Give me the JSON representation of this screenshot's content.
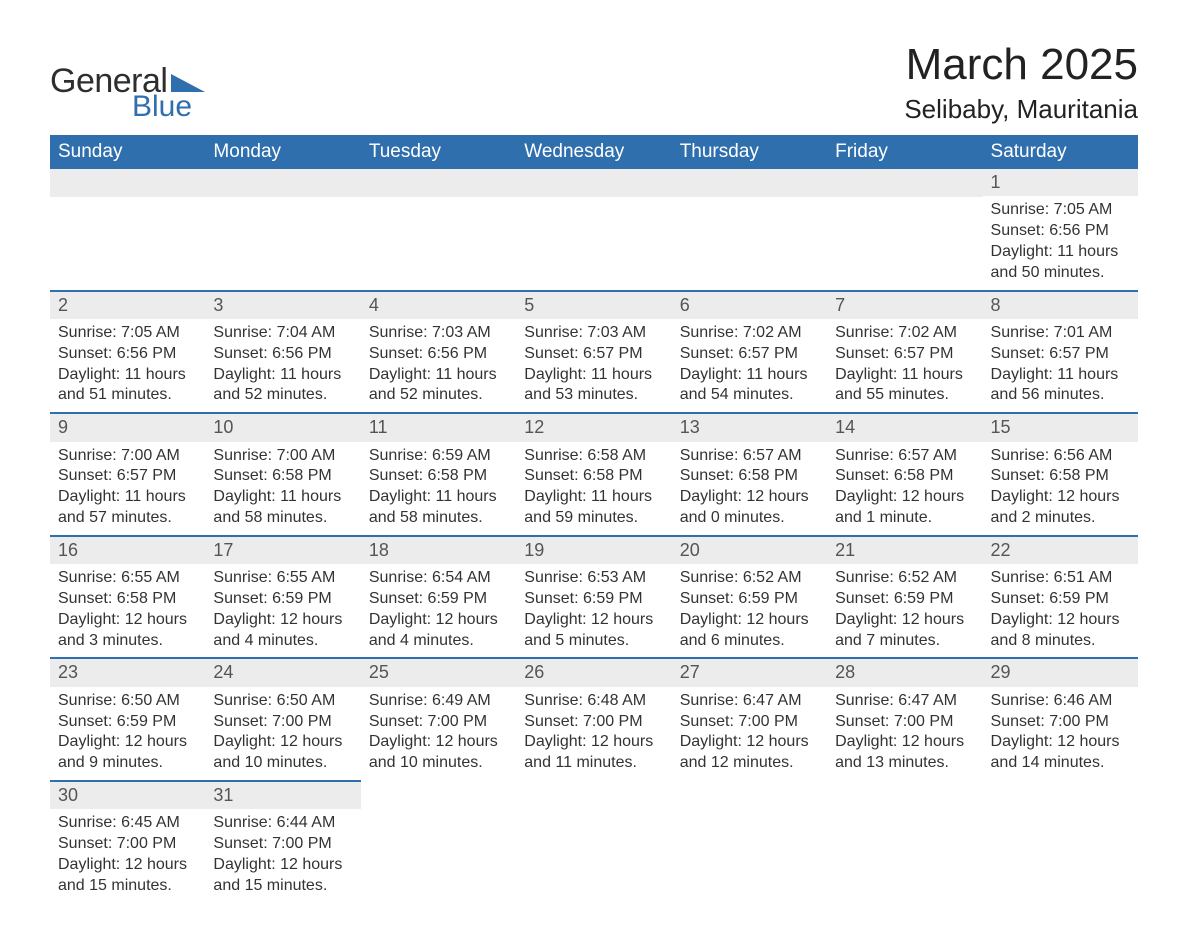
{
  "brand": {
    "general": "General",
    "blue": "Blue",
    "triangle_color": "#2f6fae"
  },
  "title": {
    "month": "March 2025",
    "location": "Selibaby, Mauritania"
  },
  "colors": {
    "header_bg": "#2f6fae",
    "header_fg": "#ffffff",
    "daynum_bg": "#ececec",
    "row_border": "#2f6fae",
    "text": "#333333"
  },
  "columns": [
    "Sunday",
    "Monday",
    "Tuesday",
    "Wednesday",
    "Thursday",
    "Friday",
    "Saturday"
  ],
  "weeks": [
    [
      {
        "blank": true
      },
      {
        "blank": true
      },
      {
        "blank": true
      },
      {
        "blank": true
      },
      {
        "blank": true
      },
      {
        "blank": true
      },
      {
        "day": "1",
        "sunrise": "Sunrise: 7:05 AM",
        "sunset": "Sunset: 6:56 PM",
        "daylight": "Daylight: 11 hours and 50 minutes."
      }
    ],
    [
      {
        "day": "2",
        "sunrise": "Sunrise: 7:05 AM",
        "sunset": "Sunset: 6:56 PM",
        "daylight": "Daylight: 11 hours and 51 minutes."
      },
      {
        "day": "3",
        "sunrise": "Sunrise: 7:04 AM",
        "sunset": "Sunset: 6:56 PM",
        "daylight": "Daylight: 11 hours and 52 minutes."
      },
      {
        "day": "4",
        "sunrise": "Sunrise: 7:03 AM",
        "sunset": "Sunset: 6:56 PM",
        "daylight": "Daylight: 11 hours and 52 minutes."
      },
      {
        "day": "5",
        "sunrise": "Sunrise: 7:03 AM",
        "sunset": "Sunset: 6:57 PM",
        "daylight": "Daylight: 11 hours and 53 minutes."
      },
      {
        "day": "6",
        "sunrise": "Sunrise: 7:02 AM",
        "sunset": "Sunset: 6:57 PM",
        "daylight": "Daylight: 11 hours and 54 minutes."
      },
      {
        "day": "7",
        "sunrise": "Sunrise: 7:02 AM",
        "sunset": "Sunset: 6:57 PM",
        "daylight": "Daylight: 11 hours and 55 minutes."
      },
      {
        "day": "8",
        "sunrise": "Sunrise: 7:01 AM",
        "sunset": "Sunset: 6:57 PM",
        "daylight": "Daylight: 11 hours and 56 minutes."
      }
    ],
    [
      {
        "day": "9",
        "sunrise": "Sunrise: 7:00 AM",
        "sunset": "Sunset: 6:57 PM",
        "daylight": "Daylight: 11 hours and 57 minutes."
      },
      {
        "day": "10",
        "sunrise": "Sunrise: 7:00 AM",
        "sunset": "Sunset: 6:58 PM",
        "daylight": "Daylight: 11 hours and 58 minutes."
      },
      {
        "day": "11",
        "sunrise": "Sunrise: 6:59 AM",
        "sunset": "Sunset: 6:58 PM",
        "daylight": "Daylight: 11 hours and 58 minutes."
      },
      {
        "day": "12",
        "sunrise": "Sunrise: 6:58 AM",
        "sunset": "Sunset: 6:58 PM",
        "daylight": "Daylight: 11 hours and 59 minutes."
      },
      {
        "day": "13",
        "sunrise": "Sunrise: 6:57 AM",
        "sunset": "Sunset: 6:58 PM",
        "daylight": "Daylight: 12 hours and 0 minutes."
      },
      {
        "day": "14",
        "sunrise": "Sunrise: 6:57 AM",
        "sunset": "Sunset: 6:58 PM",
        "daylight": "Daylight: 12 hours and 1 minute."
      },
      {
        "day": "15",
        "sunrise": "Sunrise: 6:56 AM",
        "sunset": "Sunset: 6:58 PM",
        "daylight": "Daylight: 12 hours and 2 minutes."
      }
    ],
    [
      {
        "day": "16",
        "sunrise": "Sunrise: 6:55 AM",
        "sunset": "Sunset: 6:58 PM",
        "daylight": "Daylight: 12 hours and 3 minutes."
      },
      {
        "day": "17",
        "sunrise": "Sunrise: 6:55 AM",
        "sunset": "Sunset: 6:59 PM",
        "daylight": "Daylight: 12 hours and 4 minutes."
      },
      {
        "day": "18",
        "sunrise": "Sunrise: 6:54 AM",
        "sunset": "Sunset: 6:59 PM",
        "daylight": "Daylight: 12 hours and 4 minutes."
      },
      {
        "day": "19",
        "sunrise": "Sunrise: 6:53 AM",
        "sunset": "Sunset: 6:59 PM",
        "daylight": "Daylight: 12 hours and 5 minutes."
      },
      {
        "day": "20",
        "sunrise": "Sunrise: 6:52 AM",
        "sunset": "Sunset: 6:59 PM",
        "daylight": "Daylight: 12 hours and 6 minutes."
      },
      {
        "day": "21",
        "sunrise": "Sunrise: 6:52 AM",
        "sunset": "Sunset: 6:59 PM",
        "daylight": "Daylight: 12 hours and 7 minutes."
      },
      {
        "day": "22",
        "sunrise": "Sunrise: 6:51 AM",
        "sunset": "Sunset: 6:59 PM",
        "daylight": "Daylight: 12 hours and 8 minutes."
      }
    ],
    [
      {
        "day": "23",
        "sunrise": "Sunrise: 6:50 AM",
        "sunset": "Sunset: 6:59 PM",
        "daylight": "Daylight: 12 hours and 9 minutes."
      },
      {
        "day": "24",
        "sunrise": "Sunrise: 6:50 AM",
        "sunset": "Sunset: 7:00 PM",
        "daylight": "Daylight: 12 hours and 10 minutes."
      },
      {
        "day": "25",
        "sunrise": "Sunrise: 6:49 AM",
        "sunset": "Sunset: 7:00 PM",
        "daylight": "Daylight: 12 hours and 10 minutes."
      },
      {
        "day": "26",
        "sunrise": "Sunrise: 6:48 AM",
        "sunset": "Sunset: 7:00 PM",
        "daylight": "Daylight: 12 hours and 11 minutes."
      },
      {
        "day": "27",
        "sunrise": "Sunrise: 6:47 AM",
        "sunset": "Sunset: 7:00 PM",
        "daylight": "Daylight: 12 hours and 12 minutes."
      },
      {
        "day": "28",
        "sunrise": "Sunrise: 6:47 AM",
        "sunset": "Sunset: 7:00 PM",
        "daylight": "Daylight: 12 hours and 13 minutes."
      },
      {
        "day": "29",
        "sunrise": "Sunrise: 6:46 AM",
        "sunset": "Sunset: 7:00 PM",
        "daylight": "Daylight: 12 hours and 14 minutes."
      }
    ],
    [
      {
        "day": "30",
        "sunrise": "Sunrise: 6:45 AM",
        "sunset": "Sunset: 7:00 PM",
        "daylight": "Daylight: 12 hours and 15 minutes."
      },
      {
        "day": "31",
        "sunrise": "Sunrise: 6:44 AM",
        "sunset": "Sunset: 7:00 PM",
        "daylight": "Daylight: 12 hours and 15 minutes."
      },
      {
        "blank": true,
        "noborder": true
      },
      {
        "blank": true,
        "noborder": true
      },
      {
        "blank": true,
        "noborder": true
      },
      {
        "blank": true,
        "noborder": true
      },
      {
        "blank": true,
        "noborder": true
      }
    ]
  ]
}
